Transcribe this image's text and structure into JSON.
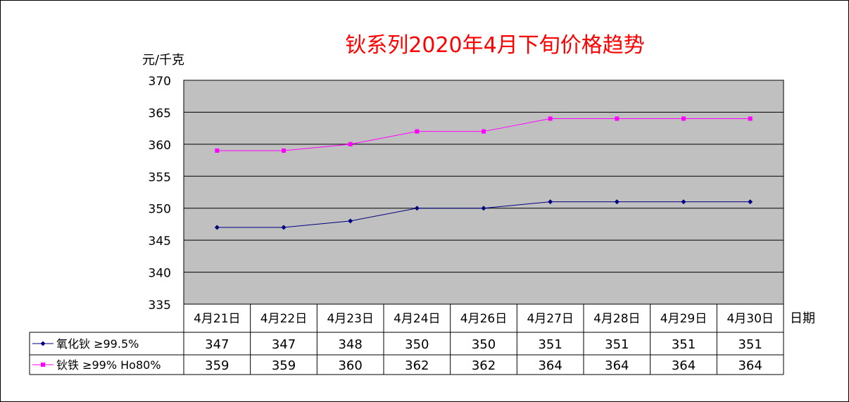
{
  "chart_data": {
    "type": "line",
    "title": "钬系列2020年4月下旬价格趋势",
    "ylabel": "元/千克",
    "xlabel": "日期",
    "ylim": [
      335,
      370
    ],
    "ytick_step": 5,
    "yticks": [
      "370",
      "365",
      "360",
      "355",
      "350",
      "345",
      "340",
      "335"
    ],
    "categories": [
      "4月21日",
      "4月22日",
      "4月23日",
      "4月24日",
      "4月26日",
      "4月27日",
      "4月28日",
      "4月29日",
      "4月30日"
    ],
    "grid": true,
    "legend": "data-table-left",
    "series": [
      {
        "name": "氧化钬 ≥99.5%",
        "values": [
          347,
          347,
          348,
          350,
          350,
          351,
          351,
          351,
          351
        ],
        "color": "#000080",
        "marker": "diamond"
      },
      {
        "name": "钬铁 ≥99% Ho80%",
        "values": [
          359,
          359,
          360,
          362,
          362,
          364,
          364,
          364,
          364
        ],
        "color": "#ff00ff",
        "marker": "square"
      }
    ],
    "table_values": [
      [
        "347",
        "347",
        "348",
        "350",
        "350",
        "351",
        "351",
        "351",
        "351"
      ],
      [
        "359",
        "359",
        "360",
        "362",
        "362",
        "364",
        "364",
        "364",
        "364"
      ]
    ]
  },
  "colors": {
    "plot_bg": "#c0c0c0",
    "title": "#ff0000",
    "grid": "#000000"
  }
}
